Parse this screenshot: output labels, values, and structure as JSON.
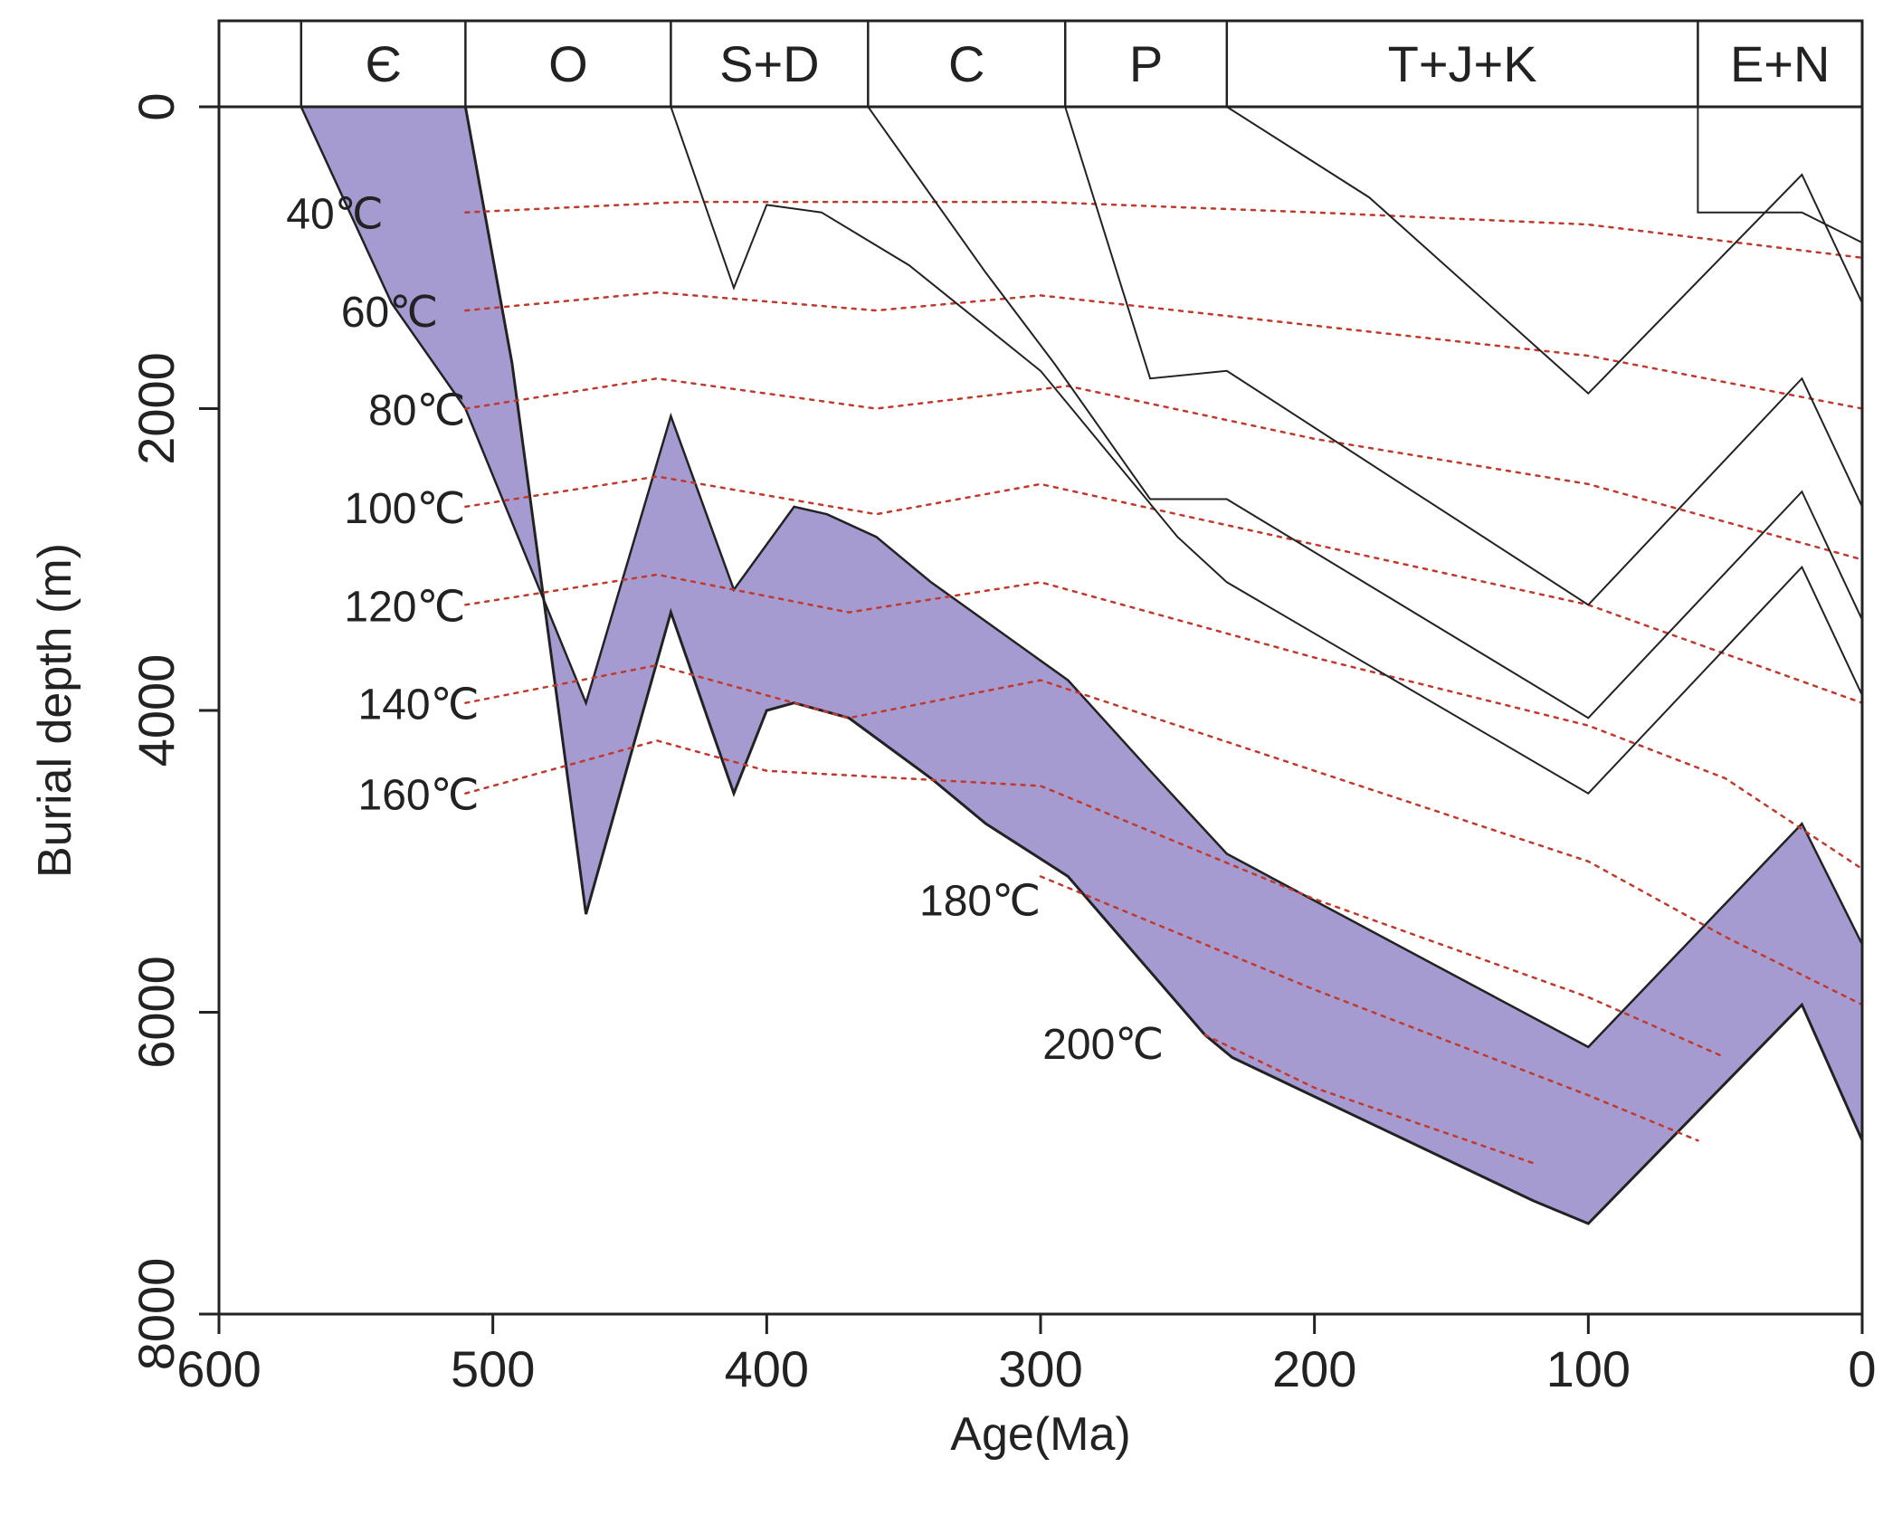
{
  "chart_data": {
    "type": "line",
    "title": "",
    "xlabel": "Age(Ma)",
    "ylabel": "Burial depth (m)",
    "x_reversed": true,
    "y_reversed": true,
    "xlim": [
      600,
      0
    ],
    "ylim": [
      0,
      8000
    ],
    "xticks": [
      "600",
      "500",
      "400",
      "300",
      "200",
      "100",
      "0"
    ],
    "yticks": [
      "0",
      "2000",
      "4000",
      "6000",
      "8000"
    ],
    "periods": [
      {
        "label": "",
        "start": 600,
        "end": 570
      },
      {
        "label": "Є",
        "start": 570,
        "end": 510
      },
      {
        "label": "O",
        "start": 510,
        "end": 435
      },
      {
        "label": "S+D",
        "start": 435,
        "end": 363
      },
      {
        "label": "C",
        "start": 363,
        "end": 291
      },
      {
        "label": "P",
        "start": 291,
        "end": 232
      },
      {
        "label": "T+J+K",
        "start": 232,
        "end": 60
      },
      {
        "label": "E+N",
        "start": 60,
        "end": 0
      }
    ],
    "colors": {
      "shaded": "#a59bd0",
      "burial_line": "#222222",
      "isotherm": "#c0392b"
    },
    "shaded_interval": {
      "top": [
        [
          570,
          0
        ],
        [
          537,
          1300
        ],
        [
          510,
          2000
        ],
        [
          466,
          3950
        ],
        [
          435,
          2050
        ],
        [
          412,
          3200
        ],
        [
          390,
          2650
        ],
        [
          378,
          2700
        ],
        [
          360,
          2850
        ],
        [
          340,
          3150
        ],
        [
          290,
          3800
        ],
        [
          260,
          4400
        ],
        [
          232,
          4950
        ],
        [
          100,
          6230
        ],
        [
          22,
          4750
        ],
        [
          0,
          5550
        ]
      ],
      "bottom": [
        [
          510,
          0
        ],
        [
          493,
          1700
        ],
        [
          466,
          5350
        ],
        [
          435,
          3350
        ],
        [
          412,
          4550
        ],
        [
          400,
          4000
        ],
        [
          390,
          3950
        ],
        [
          370,
          4050
        ],
        [
          340,
          4450
        ],
        [
          320,
          4750
        ],
        [
          290,
          5100
        ],
        [
          240,
          6150
        ],
        [
          230,
          6300
        ],
        [
          120,
          7250
        ],
        [
          100,
          7400
        ],
        [
          22,
          5950
        ],
        [
          0,
          6850
        ]
      ]
    },
    "burial_lines": [
      [
        [
          435,
          0
        ],
        [
          412,
          1200
        ],
        [
          400,
          650
        ],
        [
          380,
          700
        ],
        [
          348,
          1050
        ],
        [
          300,
          1750
        ],
        [
          250,
          2850
        ],
        [
          232,
          3150
        ],
        [
          100,
          4550
        ],
        [
          22,
          3050
        ],
        [
          0,
          3900
        ]
      ],
      [
        [
          363,
          0
        ],
        [
          320,
          1100
        ],
        [
          295,
          1700
        ],
        [
          260,
          2600
        ],
        [
          232,
          2600
        ],
        [
          100,
          4050
        ],
        [
          22,
          2550
        ],
        [
          0,
          3400
        ]
      ],
      [
        [
          291,
          0
        ],
        [
          260,
          1800
        ],
        [
          232,
          1750
        ],
        [
          100,
          3300
        ],
        [
          22,
          1800
        ],
        [
          0,
          2650
        ]
      ],
      [
        [
          232,
          0
        ],
        [
          180,
          600
        ],
        [
          100,
          1900
        ],
        [
          22,
          450
        ],
        [
          0,
          1300
        ]
      ],
      [
        [
          60,
          0
        ],
        [
          60,
          700
        ],
        [
          22,
          700
        ],
        [
          0,
          900
        ]
      ]
    ],
    "isotherms": [
      {
        "label": "40℃",
        "points": [
          [
            510,
            700
          ],
          [
            430,
            630
          ],
          [
            300,
            630
          ],
          [
            200,
            700
          ],
          [
            100,
            780
          ],
          [
            0,
            1000
          ]
        ]
      },
      {
        "label": "60℃",
        "points": [
          [
            510,
            1350
          ],
          [
            440,
            1230
          ],
          [
            360,
            1350
          ],
          [
            300,
            1250
          ],
          [
            200,
            1450
          ],
          [
            100,
            1650
          ],
          [
            0,
            2000
          ]
        ]
      },
      {
        "label": "80℃",
        "points": [
          [
            510,
            2000
          ],
          [
            440,
            1800
          ],
          [
            360,
            2000
          ],
          [
            290,
            1850
          ],
          [
            200,
            2200
          ],
          [
            100,
            2500
          ],
          [
            0,
            3000
          ]
        ]
      },
      {
        "label": "100℃",
        "points": [
          [
            510,
            2650
          ],
          [
            440,
            2450
          ],
          [
            360,
            2700
          ],
          [
            300,
            2500
          ],
          [
            200,
            2900
          ],
          [
            100,
            3300
          ],
          [
            0,
            3950
          ]
        ]
      },
      {
        "label": "120℃",
        "points": [
          [
            510,
            3300
          ],
          [
            440,
            3100
          ],
          [
            370,
            3350
          ],
          [
            300,
            3150
          ],
          [
            200,
            3650
          ],
          [
            100,
            4100
          ],
          [
            50,
            4450
          ],
          [
            0,
            5050
          ]
        ]
      },
      {
        "label": "140℃",
        "points": [
          [
            510,
            3950
          ],
          [
            440,
            3700
          ],
          [
            370,
            4050
          ],
          [
            300,
            3800
          ],
          [
            200,
            4400
          ],
          [
            100,
            5000
          ],
          [
            50,
            5500
          ],
          [
            0,
            5950
          ]
        ]
      },
      {
        "label": "160℃",
        "points": [
          [
            510,
            4550
          ],
          [
            440,
            4200
          ],
          [
            400,
            4400
          ],
          [
            300,
            4500
          ],
          [
            200,
            5250
          ],
          [
            100,
            5900
          ],
          [
            50,
            6300
          ]
        ]
      },
      {
        "label": "180℃",
        "points": [
          [
            300,
            5100
          ],
          [
            200,
            5850
          ],
          [
            100,
            6550
          ],
          [
            60,
            6850
          ]
        ]
      },
      {
        "label": "200℃",
        "points": [
          [
            240,
            6150
          ],
          [
            200,
            6500
          ],
          [
            120,
            7000
          ]
        ]
      }
    ],
    "isotherm_label_positions": [
      [
        540,
        700
      ],
      [
        520,
        1350
      ],
      [
        510,
        2000
      ],
      [
        510,
        2650
      ],
      [
        510,
        3300
      ],
      [
        505,
        3950
      ],
      [
        505,
        4550
      ],
      [
        300,
        5250
      ],
      [
        255,
        6200
      ]
    ]
  }
}
